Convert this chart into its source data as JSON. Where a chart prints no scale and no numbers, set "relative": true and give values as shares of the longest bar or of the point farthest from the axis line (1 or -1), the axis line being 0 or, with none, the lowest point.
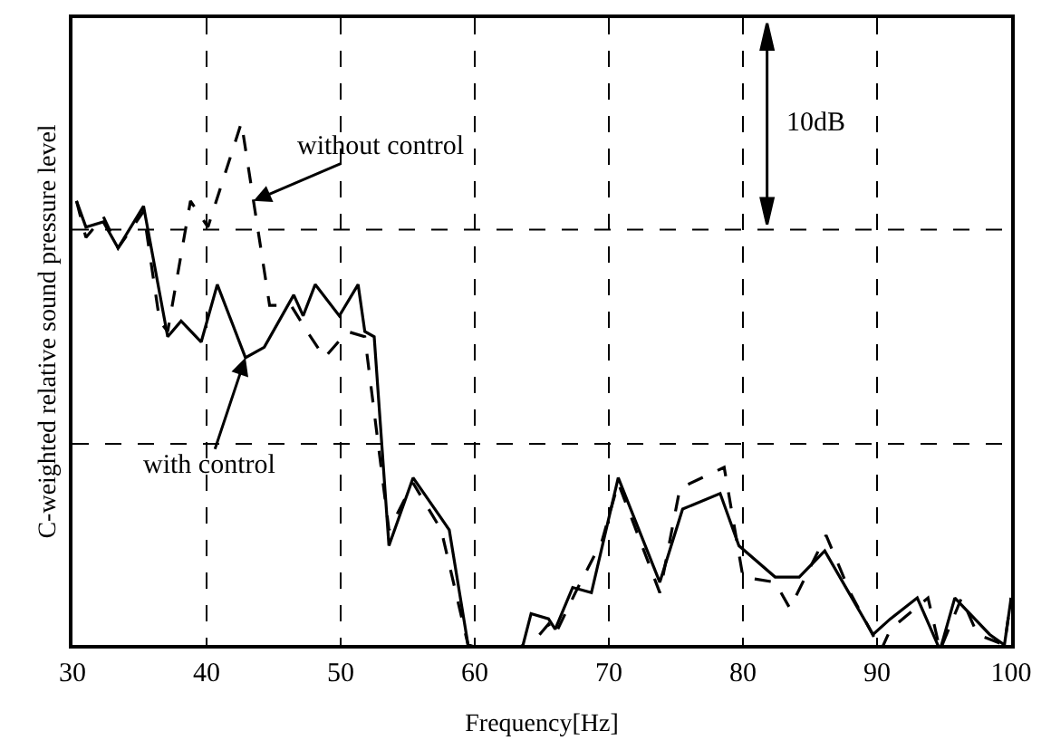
{
  "chart_data": {
    "type": "line",
    "relative": true,
    "xlabel": "Frequency[Hz]",
    "ylabel": "C-weighted relative sound pressure level",
    "xlim": [
      30,
      100
    ],
    "xticks": [
      30,
      40,
      50,
      60,
      70,
      80,
      90,
      100
    ],
    "tick_labels": "x",
    "grid": "x",
    "ref_lines": [
      {
        "axis": "y",
        "value": 0.385,
        "color": "#000000",
        "line_style": "dashed"
      },
      {
        "axis": "y",
        "value": 0.795,
        "color": "#000000",
        "line_style": "dashed"
      }
    ],
    "series": [
      {
        "color": "#000000",
        "line_style": "solid",
        "x": [
          30.3,
          31,
          32.3,
          33.4,
          35.3,
          37.1,
          38.1,
          39.6,
          40.8,
          42.9,
          44.3,
          46.5,
          47.2,
          48.1,
          49.9,
          51.3,
          51.8,
          52.5,
          53.6,
          55.4,
          57.3,
          58.1,
          59.5,
          60.9,
          62.5,
          63.6,
          64.2,
          65.5,
          66.0,
          67.3,
          68.7,
          70.7,
          73.8,
          75.5,
          78.3,
          79.7,
          82.4,
          84.2,
          86.1,
          87.9,
          89.7,
          91.0,
          93.0,
          94.7,
          95.8,
          98.4,
          99.5,
          100
        ],
        "values": [
          0.85,
          0.8,
          0.81,
          0.76,
          0.84,
          0.59,
          0.62,
          0.58,
          0.69,
          0.55,
          0.57,
          0.67,
          0.63,
          0.69,
          0.63,
          0.69,
          0.6,
          0.59,
          0.19,
          0.32,
          0.25,
          0.22,
          0.0,
          -0.01,
          -0.02,
          0.0,
          0.06,
          0.05,
          0.03,
          0.11,
          0.1,
          0.32,
          0.12,
          0.26,
          0.29,
          0.19,
          0.13,
          0.13,
          0.18,
          0.1,
          0.02,
          0.05,
          0.09,
          -0.01,
          0.09,
          0.02,
          0.0,
          0.09
        ]
      },
      {
        "color": "#000000",
        "line_style": "dashed",
        "x": [
          30.3,
          31,
          32.3,
          33.4,
          35.3,
          36.5,
          37.1,
          38.8,
          40.1,
          42.6,
          44.7,
          46.3,
          47.5,
          48.8,
          50.5,
          51.8,
          53.6,
          55.4,
          57.5,
          59.5,
          61.5,
          63.2,
          65.5,
          66.0,
          67.5,
          69.5,
          70.7,
          73.8,
          75.3,
          78.6,
          80.0,
          82.4,
          83.5,
          86.2,
          88.0,
          90.3,
          91.0,
          93.8,
          94.7,
          96.3,
          97.5,
          99.5,
          100
        ],
        "values": [
          0.85,
          0.78,
          0.82,
          0.76,
          0.83,
          0.62,
          0.6,
          0.85,
          0.8,
          1.0,
          0.65,
          0.65,
          0.6,
          0.55,
          0.6,
          0.59,
          0.22,
          0.31,
          0.22,
          0.0,
          -0.02,
          -0.03,
          0.04,
          0.02,
          0.1,
          0.2,
          0.31,
          0.1,
          0.3,
          0.34,
          0.13,
          0.12,
          0.07,
          0.21,
          0.1,
          -0.01,
          0.03,
          0.09,
          -0.01,
          0.09,
          0.02,
          0.0,
          0.09
        ]
      }
    ],
    "annotations": [
      {
        "text": "without control",
        "x": 43.5,
        "y": 0.85
      },
      {
        "text": "with control",
        "x": 42.9,
        "y": 0.55
      },
      "10dB"
    ]
  }
}
